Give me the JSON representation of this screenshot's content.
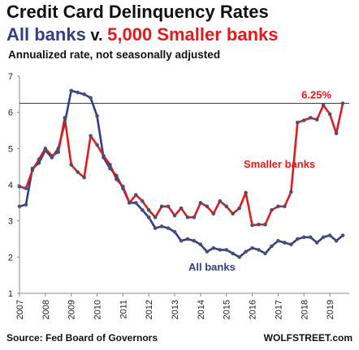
{
  "header": {
    "title": "Credit Card Delinquency Rates",
    "subtitle_part1": "All banks",
    "subtitle_part2": " v. ",
    "subtitle_part3": "5,000 Smaller banks",
    "note": "Annualized rate, not seasonally adjusted"
  },
  "footer": {
    "source": "Source: Fed Board of Governors",
    "brand": "WOLFSTREET.com"
  },
  "colors": {
    "smaller_banks": "#e11b1b",
    "all_banks": "#2f3f8a",
    "reference_line": "#6b2a2a",
    "axis": "#888888"
  },
  "chart_data": {
    "type": "line",
    "title": "Credit Card Delinquency Rates",
    "subtitle": "All banks v. 5,000 Smaller banks",
    "ylabel": "",
    "xlabel": "",
    "ylim": [
      1,
      7
    ],
    "xlim": [
      2007,
      2019.75
    ],
    "yticks": [
      "1",
      "2",
      "3",
      "4",
      "5",
      "6",
      "7"
    ],
    "xticks": [
      "2007",
      "2008",
      "2009",
      "2010",
      "2011",
      "2012",
      "2013",
      "2014",
      "2015",
      "2016",
      "2017",
      "2018",
      "2019"
    ],
    "grid": false,
    "reference_line": {
      "y": 6.25,
      "label": "6.25%"
    },
    "series": [
      {
        "name": "Smaller banks",
        "x": [
          2007.0,
          2007.25,
          2007.5,
          2007.75,
          2008.0,
          2008.25,
          2008.5,
          2008.75,
          2009.0,
          2009.25,
          2009.5,
          2009.75,
          2010.0,
          2010.25,
          2010.5,
          2010.75,
          2011.0,
          2011.25,
          2011.5,
          2011.75,
          2012.0,
          2012.25,
          2012.5,
          2012.75,
          2013.0,
          2013.25,
          2013.5,
          2013.75,
          2014.0,
          2014.25,
          2014.5,
          2014.75,
          2015.0,
          2015.25,
          2015.5,
          2015.75,
          2016.0,
          2016.25,
          2016.5,
          2016.75,
          2017.0,
          2017.25,
          2017.5,
          2017.75,
          2018.0,
          2018.25,
          2018.5,
          2018.75,
          2019.0,
          2019.25,
          2019.5
        ],
        "values": [
          3.95,
          3.9,
          4.4,
          4.7,
          5.0,
          4.8,
          4.9,
          5.85,
          4.55,
          4.35,
          4.2,
          5.35,
          5.1,
          4.8,
          4.55,
          4.15,
          3.95,
          3.5,
          3.72,
          3.55,
          3.3,
          3.1,
          3.4,
          3.4,
          3.15,
          3.35,
          3.1,
          3.1,
          3.5,
          3.4,
          3.2,
          3.55,
          3.4,
          3.2,
          3.35,
          3.78,
          2.88,
          2.9,
          2.9,
          3.3,
          3.4,
          3.4,
          3.8,
          5.72,
          5.78,
          5.85,
          5.8,
          6.2,
          5.95,
          5.42,
          6.25
        ]
      },
      {
        "name": "All banks",
        "x": [
          2007.0,
          2007.25,
          2007.5,
          2007.75,
          2008.0,
          2008.25,
          2008.5,
          2008.75,
          2009.0,
          2009.25,
          2009.5,
          2009.75,
          2010.0,
          2010.25,
          2010.5,
          2010.75,
          2011.0,
          2011.25,
          2011.5,
          2011.75,
          2012.0,
          2012.25,
          2012.5,
          2012.75,
          2013.0,
          2013.25,
          2013.5,
          2013.75,
          2014.0,
          2014.25,
          2014.5,
          2014.75,
          2015.0,
          2015.25,
          2015.5,
          2015.75,
          2016.0,
          2016.25,
          2016.5,
          2016.75,
          2017.0,
          2017.25,
          2017.5,
          2017.75,
          2018.0,
          2018.25,
          2018.5,
          2018.75,
          2019.0,
          2019.25,
          2019.5
        ],
        "values": [
          3.4,
          3.45,
          4.45,
          4.6,
          4.95,
          4.75,
          5.0,
          5.7,
          6.6,
          6.55,
          6.5,
          6.4,
          5.9,
          4.75,
          4.45,
          4.25,
          3.9,
          3.5,
          3.5,
          3.3,
          3.1,
          2.8,
          2.85,
          2.8,
          2.7,
          2.45,
          2.5,
          2.45,
          2.35,
          2.15,
          2.25,
          2.2,
          2.2,
          2.1,
          2.0,
          2.15,
          2.25,
          2.2,
          2.1,
          2.3,
          2.45,
          2.4,
          2.35,
          2.5,
          2.55,
          2.55,
          2.4,
          2.55,
          2.6,
          2.45,
          2.6
        ]
      }
    ],
    "annotations": [
      {
        "text": "Smaller banks",
        "series": "Smaller banks"
      },
      {
        "text": "All banks",
        "series": "All banks"
      }
    ]
  }
}
